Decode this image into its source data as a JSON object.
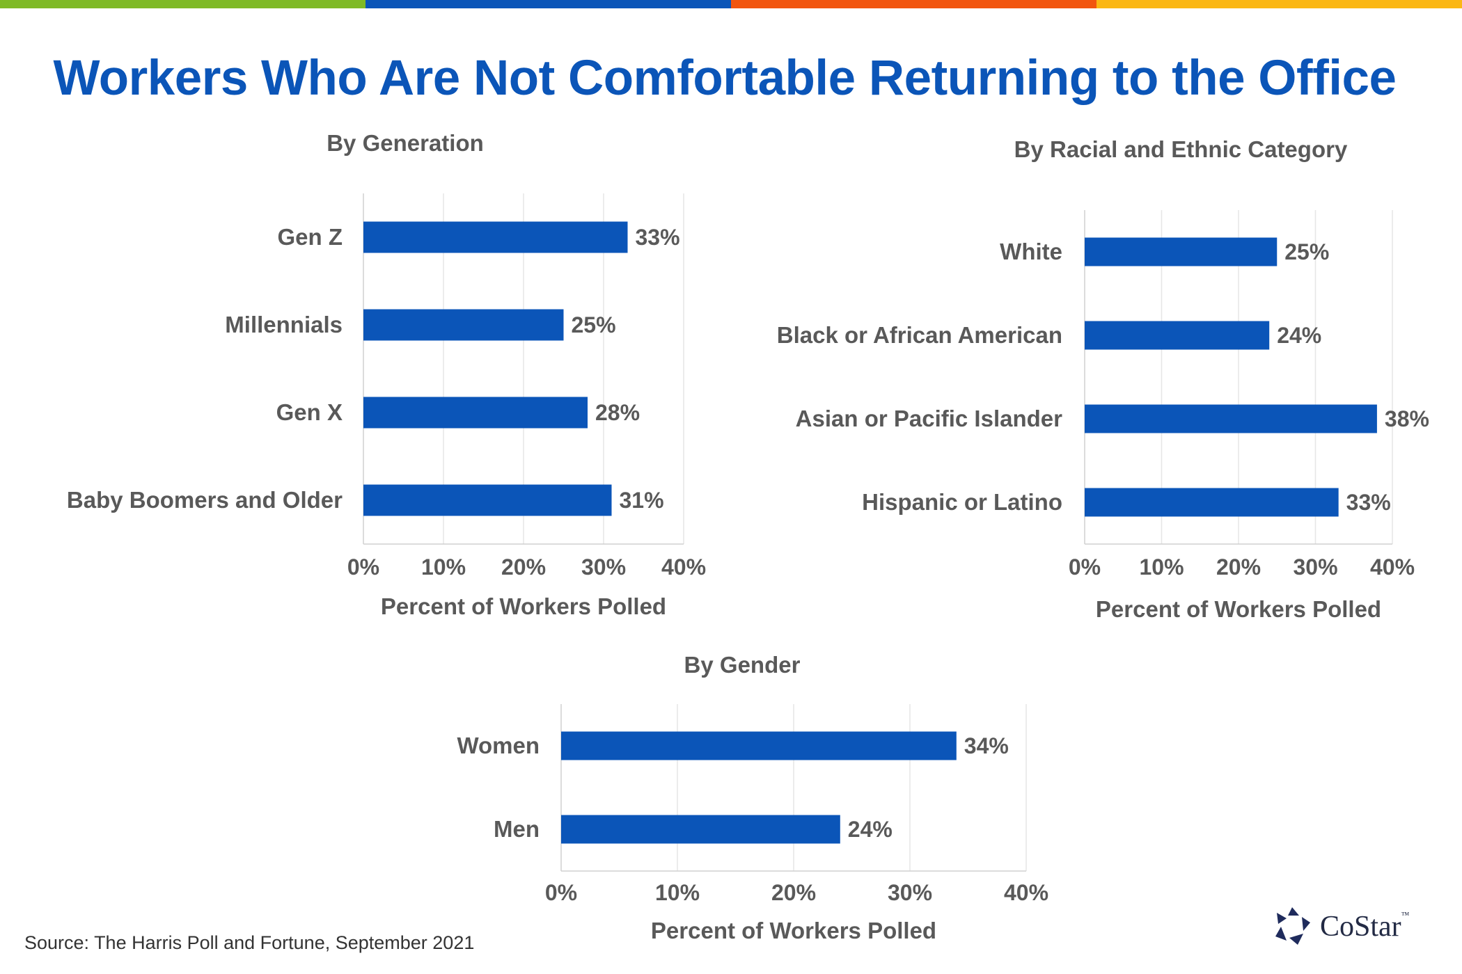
{
  "title": "Workers Who Are Not Comfortable Returning to the Office",
  "source": "Source: The Harris Poll and Fortune, September 2021",
  "logo": {
    "name": "CoStar",
    "tm": "™"
  },
  "colors": {
    "bar": "#0b55b8",
    "title": "#0b55b8",
    "band": [
      "#7fba26",
      "#0b55b8",
      "#f2550f",
      "#fbb714"
    ]
  },
  "chart_data": [
    {
      "type": "bar",
      "orientation": "horizontal",
      "title": "By Generation",
      "xlabel": "Percent of Workers Polled",
      "categories": [
        "Gen Z",
        "Millennials",
        "Gen X",
        "Baby Boomers and Older"
      ],
      "values": [
        33,
        25,
        28,
        31
      ],
      "value_labels": [
        "33%",
        "25%",
        "28%",
        "31%"
      ],
      "xlim": [
        0,
        40
      ],
      "ticks": [
        0,
        10,
        20,
        30,
        40
      ],
      "tick_labels": [
        "0%",
        "10%",
        "20%",
        "30%",
        "40%"
      ],
      "grid": true
    },
    {
      "type": "bar",
      "orientation": "horizontal",
      "title": "By Racial and Ethnic Category",
      "xlabel": "Percent of Workers Polled",
      "categories": [
        "White",
        "Black or African American",
        "Asian or Pacific Islander",
        "Hispanic or Latino"
      ],
      "values": [
        25,
        24,
        38,
        33
      ],
      "value_labels": [
        "25%",
        "24%",
        "38%",
        "33%"
      ],
      "xlim": [
        0,
        40
      ],
      "ticks": [
        0,
        10,
        20,
        30,
        40
      ],
      "tick_labels": [
        "0%",
        "10%",
        "20%",
        "30%",
        "40%"
      ],
      "grid": true
    },
    {
      "type": "bar",
      "orientation": "horizontal",
      "title": "By Gender",
      "xlabel": "Percent of Workers Polled",
      "categories": [
        "Women",
        "Men"
      ],
      "values": [
        34,
        24
      ],
      "value_labels": [
        "34%",
        "24%"
      ],
      "xlim": [
        0,
        40
      ],
      "ticks": [
        0,
        10,
        20,
        30,
        40
      ],
      "tick_labels": [
        "0%",
        "10%",
        "20%",
        "30%",
        "40%"
      ],
      "grid": true
    }
  ]
}
